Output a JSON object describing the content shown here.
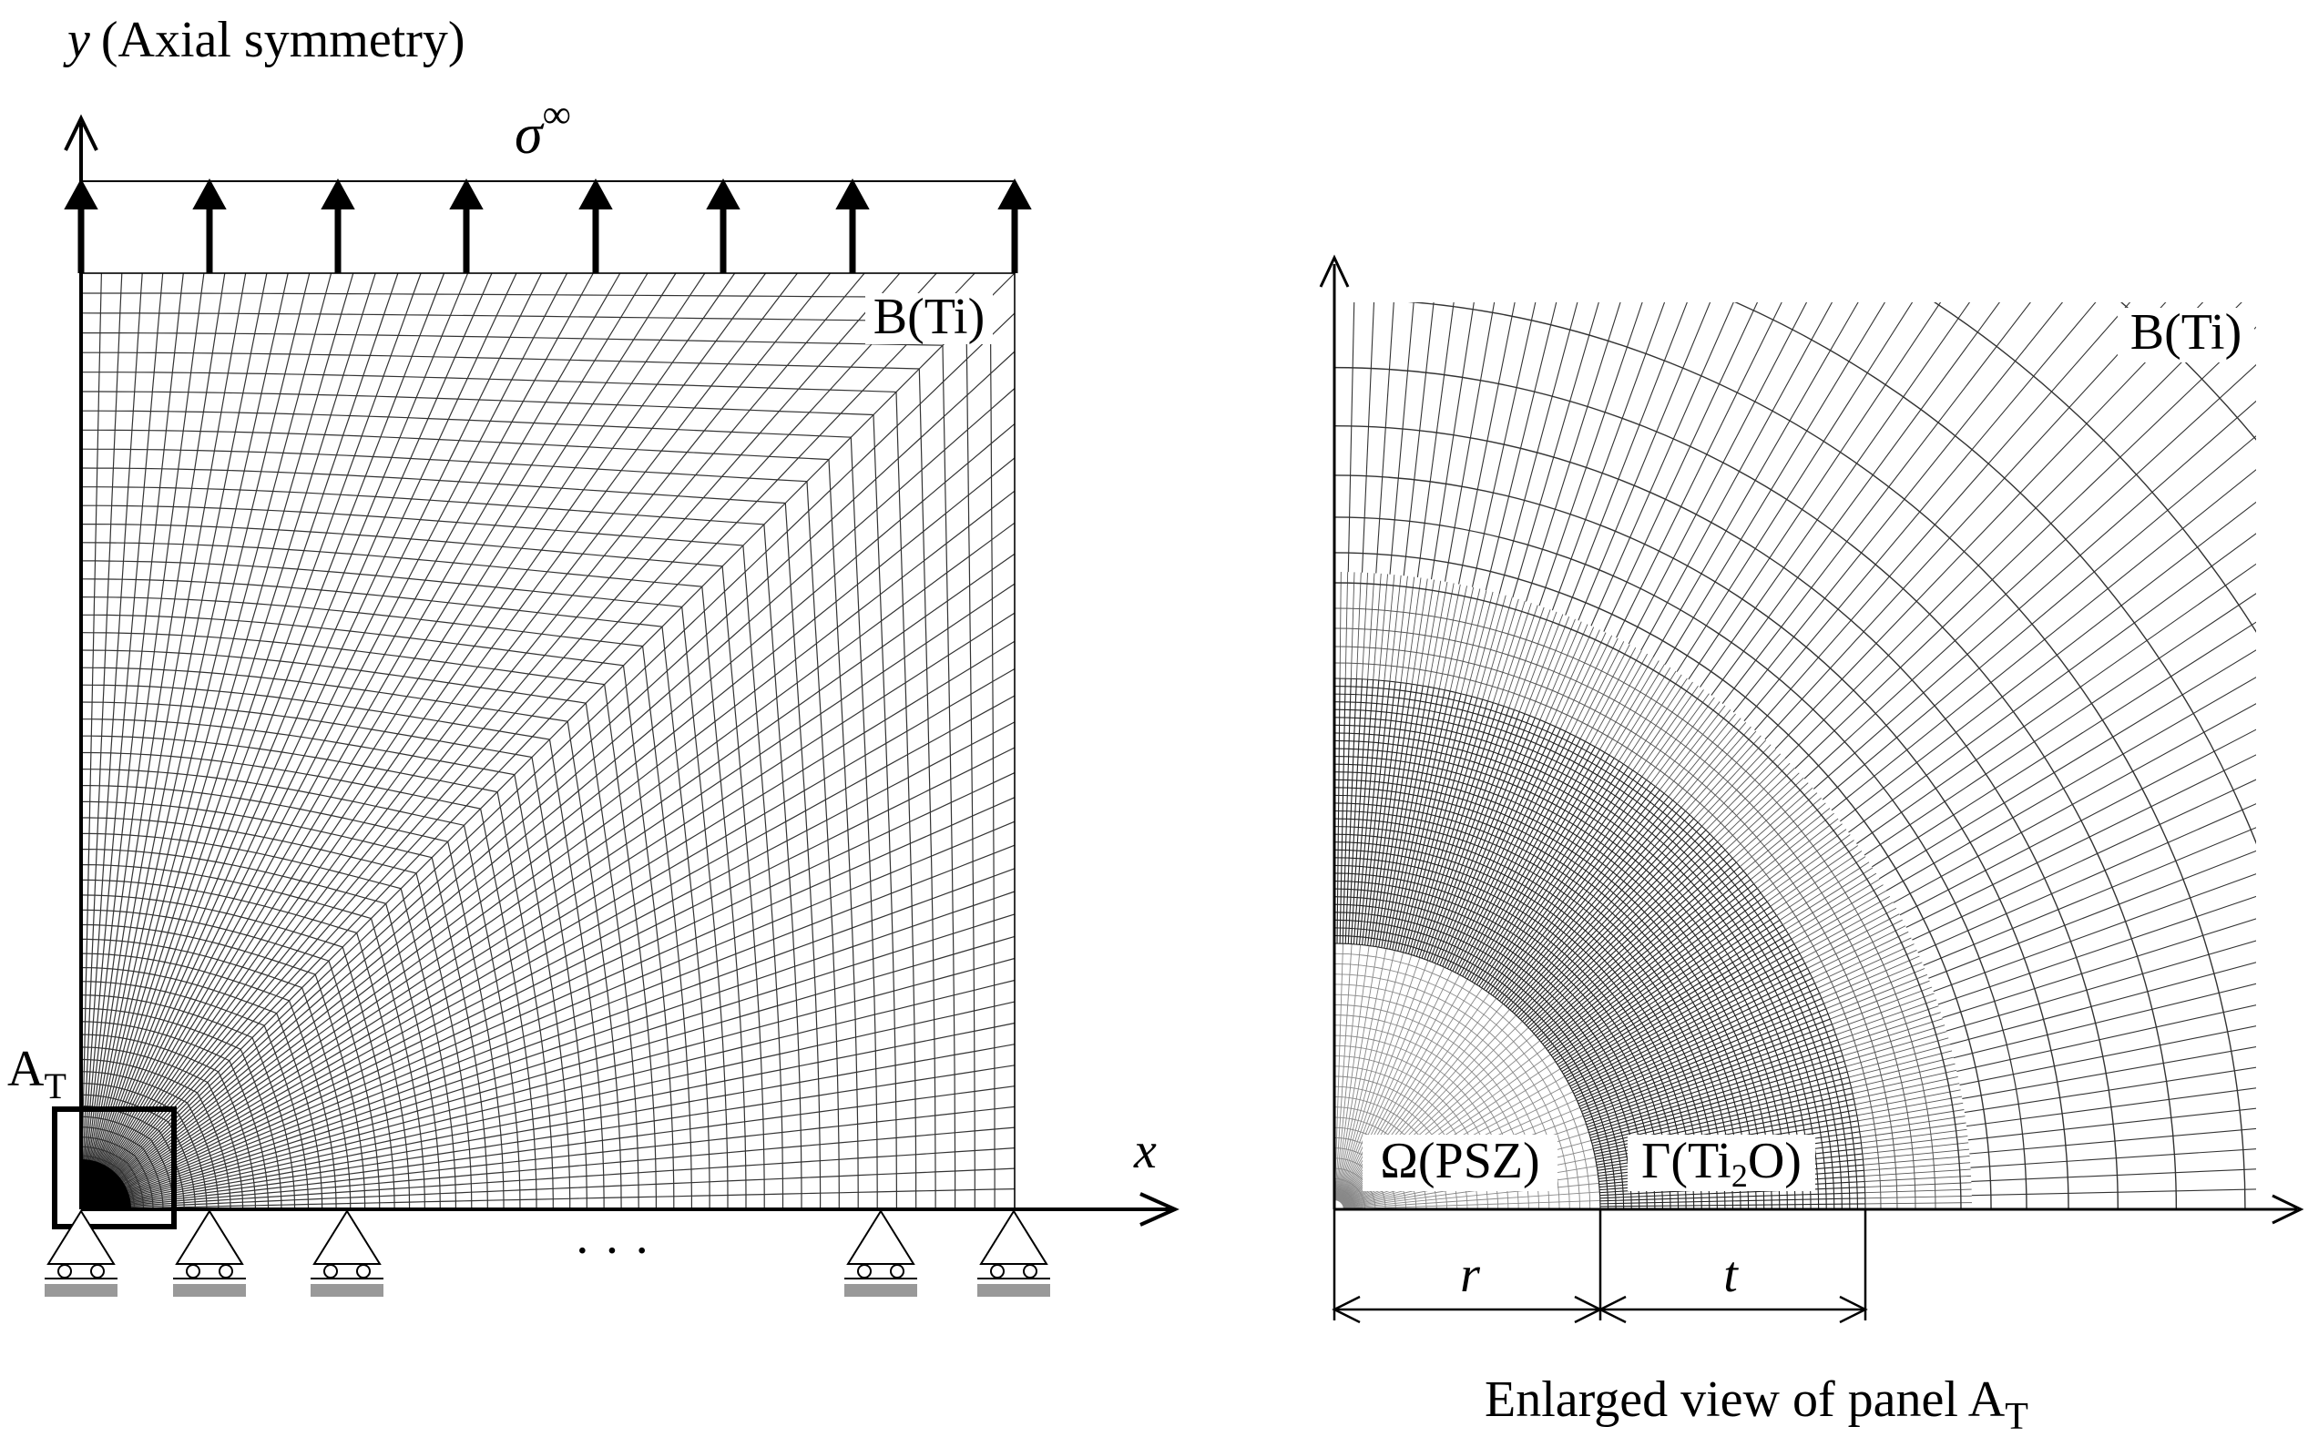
{
  "left_panel": {
    "axis_y_label": "y",
    "axis_y_note": "(Axial symmetry)",
    "load_symbol": "σ",
    "load_superscript": "∞",
    "region_label": "B(Ti)",
    "panel_marker": "A",
    "panel_marker_subscript": "T",
    "axis_x_label": "x",
    "ellipsis": "· · ·"
  },
  "right_panel": {
    "matrix_label": "B(Ti)",
    "particle_label": "Ω(PSZ)",
    "layer_label_prefix": "Γ(Ti",
    "layer_label_subscript": "2",
    "layer_label_suffix": "O)",
    "radius_label": "r",
    "thickness_label": "t",
    "caption": "Enlarged view of panel A",
    "caption_subscript": "T"
  }
}
